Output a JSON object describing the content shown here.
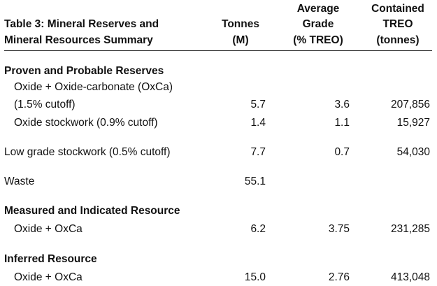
{
  "table": {
    "title_line1": "Table 3: Mineral Reserves and",
    "title_line2": "Mineral Resources Summary",
    "columns": {
      "tonnes": {
        "line1": "Tonnes",
        "line2": "(M)"
      },
      "grade": {
        "line1": "Average",
        "line2": "Grade",
        "line3": "(% TREO)"
      },
      "treo": {
        "line1": "Contained",
        "line2": "TREO",
        "line3": "(tonnes)"
      }
    },
    "sections": {
      "proven": {
        "heading": "Proven and Probable Reserves",
        "rows": [
          {
            "label_line1": "Oxide + Oxide-carbonate (OxCa)",
            "label_line2": "(1.5% cutoff)",
            "tonnes": "5.7",
            "grade": "3.6",
            "treo": "207,856"
          },
          {
            "label": "Oxide stockwork (0.9% cutoff)",
            "tonnes": "1.4",
            "grade": "1.1",
            "treo": "15,927"
          }
        ]
      },
      "low_grade": {
        "label": "Low grade stockwork (0.5% cutoff)",
        "tonnes": "7.7",
        "grade": "0.7",
        "treo": "54,030"
      },
      "waste": {
        "label": "Waste",
        "tonnes": "55.1"
      },
      "measured": {
        "heading": "Measured and Indicated Resource",
        "rows": [
          {
            "label": "Oxide + OxCa",
            "tonnes": "6.2",
            "grade": "3.75",
            "treo": "231,285"
          }
        ]
      },
      "inferred": {
        "heading": "Inferred Resource",
        "rows": [
          {
            "label": "Oxide + OxCa",
            "tonnes": "15.0",
            "grade": "2.76",
            "treo": "413,048"
          }
        ]
      }
    }
  }
}
